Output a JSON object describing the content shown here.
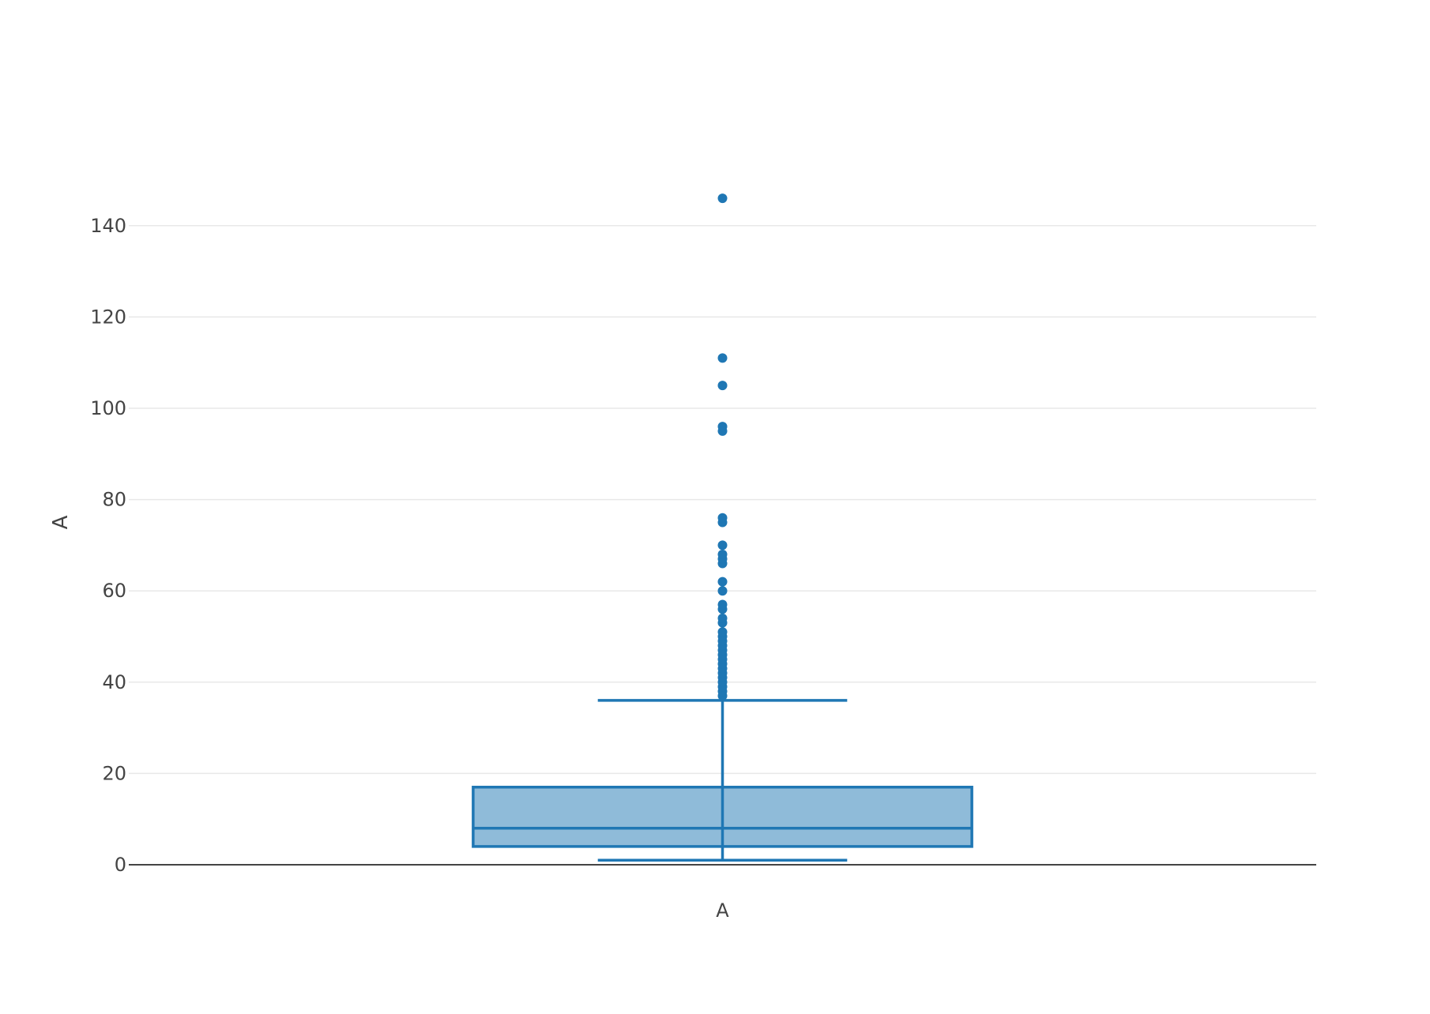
{
  "chart_data": {
    "type": "box",
    "title": "",
    "xlabel": "",
    "ylabel": "A",
    "categories": [
      "A"
    ],
    "ylim": [
      0,
      150
    ],
    "yticks": [
      0,
      20,
      40,
      60,
      80,
      100,
      120,
      140
    ],
    "ytick_labels": [
      "0",
      "20",
      "40",
      "60",
      "80",
      "100",
      "120",
      "140"
    ],
    "grid": true,
    "legend": "none",
    "color": "#1f77b4",
    "box_fill": "rgba(31,119,180,0.5)",
    "series": [
      {
        "category": "A",
        "lower_fence": 1,
        "q1": 4,
        "median": 8,
        "q3": 17,
        "upper_fence": 36,
        "outliers": [
          37,
          38,
          39,
          40,
          41,
          42,
          43,
          44,
          45,
          46,
          47,
          48,
          49,
          50,
          51,
          53,
          54,
          56,
          57,
          60,
          62,
          66,
          67,
          68,
          70,
          75,
          76,
          95,
          96,
          105,
          111,
          146
        ]
      }
    ]
  }
}
